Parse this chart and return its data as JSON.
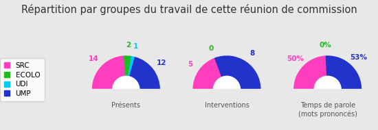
{
  "title": "Répartition par groupes du travail de cette réunion de commission",
  "groups": [
    "SRC",
    "ECOLO",
    "UDI",
    "UMP"
  ],
  "colors": [
    "#FF3EBF",
    "#22BB22",
    "#00CCEE",
    "#2233CC"
  ],
  "charts": [
    {
      "label": "Présents",
      "values": [
        14,
        2,
        1,
        12
      ],
      "display": [
        "14",
        "2",
        "1",
        "12"
      ]
    },
    {
      "label": "Interventions",
      "values": [
        5,
        0,
        0,
        8
      ],
      "display": [
        "5",
        "0",
        "",
        "8"
      ]
    },
    {
      "label": "Temps de parole\n(mots prononcés)",
      "values": [
        50,
        0,
        0,
        53
      ],
      "display": [
        "50%",
        "0%",
        "",
        "53%"
      ]
    }
  ],
  "background_color": "#E8E8E8",
  "legend_bg": "#FFFFFF",
  "title_fontsize": 10.5,
  "label_fontsize": 7.5
}
